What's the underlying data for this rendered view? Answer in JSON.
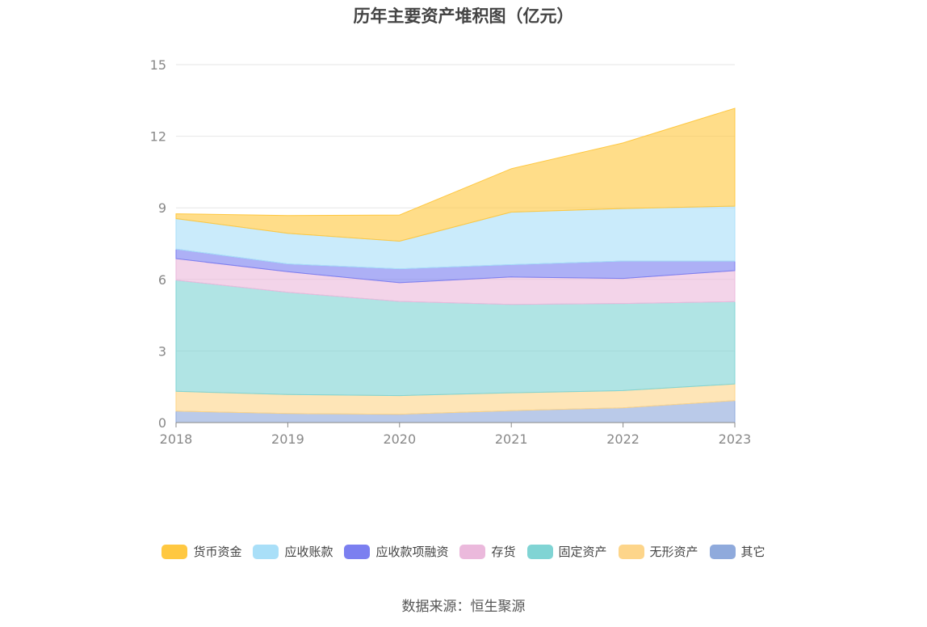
{
  "chart_data": {
    "type": "area",
    "stacked": true,
    "title": "历年主要资产堆积图（亿元）",
    "x": [
      "2018",
      "2019",
      "2020",
      "2021",
      "2022",
      "2023"
    ],
    "ylim": [
      0,
      15
    ],
    "yticks": [
      0,
      3,
      6,
      9,
      12,
      15
    ],
    "grid": true,
    "legend_position": "bottom",
    "series": [
      {
        "name": "其它",
        "color": "#8faadc",
        "values": [
          0.48,
          0.38,
          0.35,
          0.5,
          0.62,
          0.92
        ]
      },
      {
        "name": "无形资产",
        "color": "#fdd58a",
        "values": [
          0.83,
          0.8,
          0.78,
          0.75,
          0.72,
          0.7
        ]
      },
      {
        "name": "固定资产",
        "color": "#80d4d4",
        "values": [
          4.66,
          4.28,
          3.95,
          3.7,
          3.65,
          3.45
        ]
      },
      {
        "name": "存货",
        "color": "#ebb9dc",
        "values": [
          0.9,
          0.86,
          0.78,
          1.15,
          1.05,
          1.3
        ]
      },
      {
        "name": "应收款项融资",
        "color": "#7b7ff0",
        "values": [
          0.4,
          0.33,
          0.58,
          0.52,
          0.73,
          0.4
        ]
      },
      {
        "name": "应收账款",
        "color": "#a9dff8",
        "values": [
          1.28,
          1.28,
          1.16,
          2.2,
          2.2,
          2.3
        ]
      },
      {
        "name": "货币资金",
        "color": "#ffc841",
        "values": [
          0.2,
          0.75,
          1.1,
          1.82,
          2.75,
          4.1
        ]
      }
    ],
    "legend_order": [
      "货币资金",
      "应收账款",
      "应收款项融资",
      "存货",
      "固定资产",
      "无形资产",
      "其它"
    ]
  },
  "source": "数据来源：恒生聚源"
}
